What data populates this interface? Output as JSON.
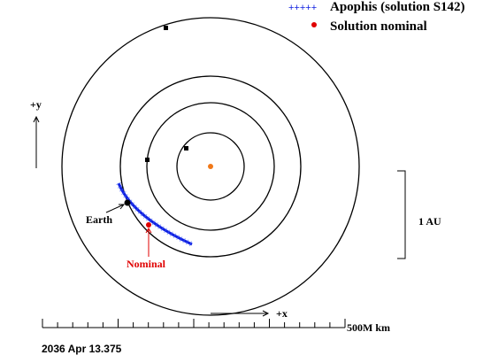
{
  "legend": {
    "items": [
      {
        "marker": "+++++",
        "label": "Apophis (solution S142)"
      },
      {
        "label": "Solution nominal"
      }
    ]
  },
  "axes": {
    "y_label": "+y",
    "x_label": "+x"
  },
  "labels": {
    "earth": "Earth",
    "nominal": "Nominal"
  },
  "scale": {
    "vertical": "1 AU",
    "horizontal": "500M km"
  },
  "date": "2036 Apr 13.375"
}
